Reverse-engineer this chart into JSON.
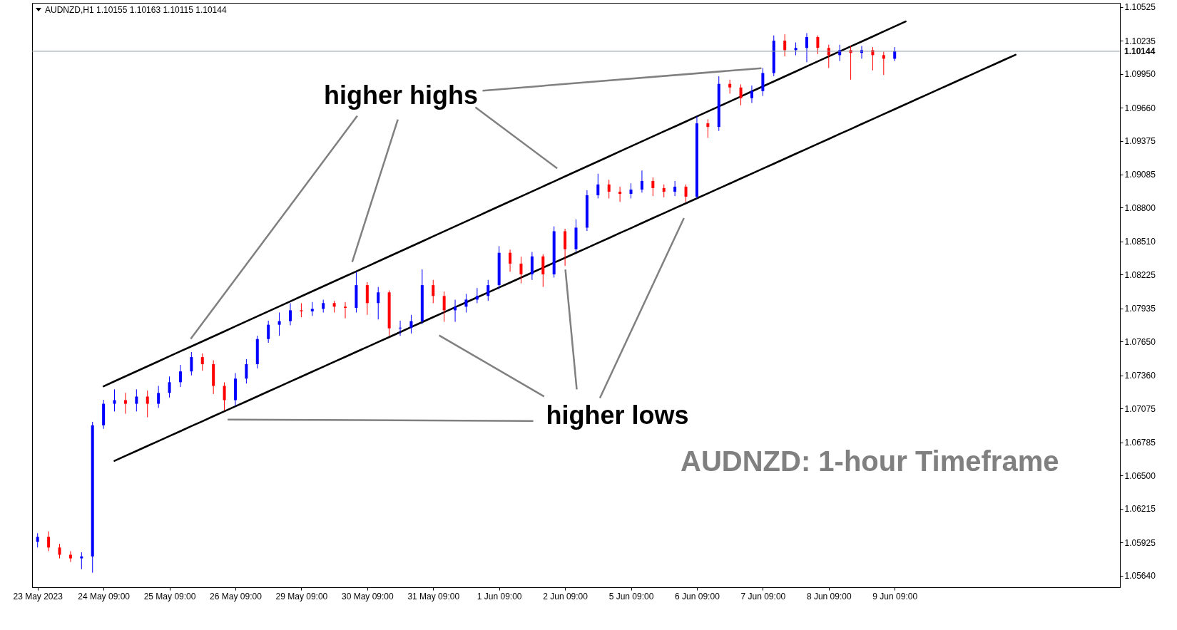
{
  "chart_data": {
    "type": "candlestick",
    "title": "AUDNZD,H1  1.10155 1.10163 1.10115 1.10144",
    "annotations": [
      {
        "text": "higher highs",
        "x": "7 Jun 09:00",
        "y": 1.1
      },
      {
        "text": "higher lows",
        "x": "2 Jun 09:00",
        "y": 1.083
      },
      "AUDNZD: 1-hour Timeframe"
    ],
    "categories": [
      "23 May 2023",
      null,
      null,
      null,
      null,
      null,
      "24 May 09:00",
      null,
      null,
      null,
      null,
      null,
      "25 May 09:00",
      null,
      null,
      null,
      null,
      null,
      "26 May 09:00",
      null,
      null,
      null,
      null,
      null,
      "29 May 09:00",
      null,
      null,
      null,
      null,
      null,
      "30 May 09:00",
      null,
      null,
      null,
      null,
      null,
      "31 May 09:00",
      null,
      null,
      null,
      null,
      null,
      "1 Jun 09:00",
      null,
      null,
      null,
      null,
      null,
      "2 Jun 09:00",
      null,
      null,
      null,
      null,
      null,
      "5 Jun 09:00",
      null,
      null,
      null,
      null,
      null,
      "6 Jun 09:00",
      null,
      null,
      null,
      null,
      null,
      "7 Jun 09:00",
      null,
      null,
      null,
      null,
      null,
      "8 Jun 09:00",
      null,
      null,
      null,
      null,
      null,
      "9 Jun 09:00",
      null,
      null,
      null,
      null,
      null,
      null,
      null,
      null,
      null,
      null,
      null,
      null,
      null,
      null,
      null,
      null,
      null,
      null,
      null,
      null
    ],
    "ohlc": [
      [
        1.0593,
        1.06004,
        1.05881,
        1.05973
      ],
      [
        1.05973,
        1.0602,
        1.0585,
        1.05881
      ],
      [
        1.05881,
        1.05912,
        1.05788,
        1.05819
      ],
      [
        1.05819,
        1.0585,
        1.05757,
        1.05788
      ],
      [
        1.05788,
        1.0584,
        1.05695,
        1.05805
      ],
      [
        1.05805,
        1.06961,
        1.05665,
        1.06931
      ],
      [
        1.06931,
        1.0715,
        1.069,
        1.07116
      ],
      [
        1.07116,
        1.0724,
        1.0705,
        1.07147
      ],
      [
        1.07147,
        1.0721,
        1.0703,
        1.07116
      ],
      [
        1.07116,
        1.0724,
        1.0705,
        1.07178
      ],
      [
        1.07178,
        1.0723,
        1.07,
        1.07116
      ],
      [
        1.07116,
        1.0727,
        1.0708,
        1.07209
      ],
      [
        1.07209,
        1.0735,
        1.0717,
        1.07301
      ],
      [
        1.07301,
        1.0745,
        1.0726,
        1.07394
      ],
      [
        1.07394,
        1.0756,
        1.0736,
        1.07517
      ],
      [
        1.07517,
        1.07548,
        1.074,
        1.07456
      ],
      [
        1.07456,
        1.0749,
        1.072,
        1.0727
      ],
      [
        1.0727,
        1.073,
        1.0706,
        1.07147
      ],
      [
        1.07147,
        1.0738,
        1.071,
        1.07332
      ],
      [
        1.07332,
        1.075,
        1.0729,
        1.07456
      ],
      [
        1.07456,
        1.077,
        1.0742,
        1.07672
      ],
      [
        1.07672,
        1.0783,
        1.0764,
        1.07795
      ],
      [
        1.07795,
        1.079,
        1.077,
        1.07826
      ],
      [
        1.07826,
        1.0798,
        1.0779,
        1.07919
      ],
      [
        1.07919,
        1.0798,
        1.0786,
        1.0791
      ],
      [
        1.0791,
        1.0799,
        1.0787,
        1.07931
      ],
      [
        1.07931,
        1.0801,
        1.079,
        1.07981
      ],
      [
        1.07981,
        1.08,
        1.079,
        1.0795
      ],
      [
        1.0795,
        1.0799,
        1.0785,
        1.0794
      ],
      [
        1.0794,
        1.0825,
        1.079,
        1.08135
      ],
      [
        1.08135,
        1.0816,
        1.0788,
        1.07981
      ],
      [
        1.07981,
        1.0812,
        1.0784,
        1.08073
      ],
      [
        1.08073,
        1.0809,
        1.077,
        1.07764
      ],
      [
        1.07764,
        1.0783,
        1.077,
        1.0777
      ],
      [
        1.0777,
        1.0788,
        1.0772,
        1.07826
      ],
      [
        1.07826,
        1.08271,
        1.078,
        1.08135
      ],
      [
        1.08135,
        1.0818,
        1.0798,
        1.08042
      ],
      [
        1.08042,
        1.0808,
        1.0782,
        1.07919
      ],
      [
        1.07919,
        1.0801,
        1.0782,
        1.0795
      ],
      [
        1.0795,
        1.0806,
        1.079,
        1.08011
      ],
      [
        1.08011,
        1.0811,
        1.0798,
        1.08042
      ],
      [
        1.08042,
        1.0818,
        1.08,
        1.08135
      ],
      [
        1.08135,
        1.0847,
        1.081,
        1.08413
      ],
      [
        1.08413,
        1.0844,
        1.0825,
        1.0832
      ],
      [
        1.0832,
        1.0838,
        1.0815,
        1.08228
      ],
      [
        1.08228,
        1.0842,
        1.0818,
        1.08382
      ],
      [
        1.08382,
        1.084,
        1.0812,
        1.08228
      ],
      [
        1.08228,
        1.0864,
        1.082,
        1.08598
      ],
      [
        1.08598,
        1.0862,
        1.083,
        1.08444
      ],
      [
        1.08444,
        1.087,
        1.0842,
        1.08629
      ],
      [
        1.08629,
        1.0895,
        1.086,
        1.08907
      ],
      [
        1.08907,
        1.09092,
        1.0888,
        1.09
      ],
      [
        1.09,
        1.0904,
        1.0888,
        1.08938
      ],
      [
        1.08938,
        1.0898,
        1.0885,
        1.08919
      ],
      [
        1.08919,
        1.0901,
        1.0888,
        1.08956
      ],
      [
        1.08956,
        1.0912,
        1.0893,
        1.0903
      ],
      [
        1.0903,
        1.0906,
        1.089,
        1.08969
      ],
      [
        1.08969,
        1.09,
        1.0889,
        1.08938
      ],
      [
        1.08938,
        1.0903,
        1.089,
        1.08981
      ],
      [
        1.08981,
        1.09,
        1.0885,
        1.08895
      ],
      [
        1.08895,
        1.09586,
        1.0888,
        1.09525
      ],
      [
        1.09525,
        1.0956,
        1.094,
        1.09494
      ],
      [
        1.09494,
        1.0993,
        1.0946,
        1.09864
      ],
      [
        1.09864,
        1.099,
        1.0978,
        1.09833
      ],
      [
        1.09833,
        1.0986,
        1.0968,
        1.09741
      ],
      [
        1.09741,
        1.0985,
        1.097,
        1.09802
      ],
      [
        1.09802,
        1.1,
        1.0976,
        1.09957
      ],
      [
        1.09957,
        1.1028,
        1.0993,
        1.10235
      ],
      [
        1.10235,
        1.1029,
        1.101,
        1.10154
      ],
      [
        1.10154,
        1.1022,
        1.1011,
        1.10173
      ],
      [
        1.10173,
        1.103,
        1.1005,
        1.10266
      ],
      [
        1.10266,
        1.1028,
        1.1012,
        1.10173
      ],
      [
        1.10173,
        1.102,
        1.1,
        1.10111
      ],
      [
        1.10111,
        1.102,
        1.1006,
        1.10154
      ],
      [
        1.10154,
        1.1019,
        1.099,
        1.1013
      ],
      [
        1.1013,
        1.1019,
        1.1008,
        1.10154
      ],
      [
        1.10154,
        1.1018,
        1.0998,
        1.10111
      ],
      [
        1.10111,
        1.1014,
        1.0994,
        1.1008
      ],
      [
        1.1008,
        1.1018,
        1.1006,
        1.10144
      ],
      null,
      null,
      null,
      null,
      null,
      null,
      null,
      null,
      null,
      null,
      null,
      null,
      null,
      null,
      null,
      null,
      null,
      null,
      null,
      null
    ],
    "colors": [
      "#0000ff",
      "#ff0000",
      "#ff0000",
      "#ff0000",
      "#0000ff",
      "#0000ff",
      "#0000ff",
      "#0000ff",
      "#ff0000",
      "#0000ff",
      "#ff0000",
      "#0000ff",
      "#0000ff",
      "#0000ff",
      "#0000ff",
      "#ff0000",
      "#ff0000",
      "#ff0000",
      "#0000ff",
      "#0000ff",
      "#0000ff",
      "#0000ff",
      "#0000ff",
      "#0000ff",
      "#ff0000",
      "#0000ff",
      "#0000ff",
      "#ff0000",
      "#ff0000",
      "#0000ff",
      "#ff0000",
      "#0000ff",
      "#ff0000",
      "#0000ff",
      "#0000ff",
      "#0000ff",
      "#ff0000",
      "#ff0000",
      "#0000ff",
      "#0000ff",
      "#0000ff",
      "#0000ff",
      "#0000ff",
      "#ff0000",
      "#ff0000",
      "#0000ff",
      "#ff0000",
      "#0000ff",
      "#ff0000",
      "#0000ff",
      "#0000ff",
      "#0000ff",
      "#ff0000",
      "#ff0000",
      "#0000ff",
      "#0000ff",
      "#ff0000",
      "#ff0000",
      "#0000ff",
      "#ff0000",
      "#0000ff",
      "#ff0000",
      "#0000ff",
      "#ff0000",
      "#ff0000",
      "#0000ff",
      "#0000ff",
      "#0000ff",
      "#ff0000",
      "#0000ff",
      "#0000ff",
      "#ff0000",
      "#ff0000",
      "#0000ff",
      "#ff0000",
      "#0000ff",
      "#ff0000",
      "#ff0000",
      "#0000ff",
      null,
      null,
      null,
      null,
      null,
      null,
      null,
      null,
      null,
      null,
      null,
      null,
      null,
      null,
      null,
      null,
      null,
      null,
      null,
      null
    ],
    "series": [
      {
        "type": "line",
        "color": "#000000",
        "values": [
          null,
          null,
          null,
          null,
          null,
          null,
          1.07266,
          1.07309,
          1.07352,
          1.07395,
          1.07438,
          1.07481,
          1.07524,
          1.07567,
          1.07609,
          1.07652,
          1.07695,
          1.07738,
          1.07781,
          1.07824,
          1.07867,
          1.0791,
          1.07953,
          1.07996,
          1.08039,
          1.08082,
          1.08125,
          1.08168,
          1.08211,
          1.08253,
          1.08296,
          1.08339,
          1.08382,
          1.08425,
          1.08468,
          1.08511,
          1.08554,
          1.08597,
          1.0864,
          1.08683,
          1.08726,
          1.08769,
          1.08812,
          1.08855,
          1.08897,
          1.0894,
          1.08983,
          1.09026,
          1.09069,
          1.09112,
          1.09155,
          1.09198,
          1.09241,
          1.09284,
          1.09327,
          1.0937,
          1.09413,
          1.09456,
          1.09498,
          1.09541,
          1.09584,
          1.09627,
          1.0967,
          1.09713,
          1.09756,
          1.09799,
          1.09842,
          1.09885,
          1.09928,
          1.09971,
          1.10014,
          1.10057,
          1.101,
          1.10143,
          1.10186,
          1.10228,
          1.10271,
          1.10314,
          1.10357,
          1.104,
          null,
          null,
          null,
          null,
          null,
          null,
          null,
          null,
          null,
          null,
          null,
          null,
          null,
          null,
          null,
          null,
          null,
          null,
          null
        ]
      },
      {
        "type": "line",
        "color": "#000000",
        "values": [
          null,
          null,
          null,
          null,
          null,
          null,
          null,
          1.06626,
          1.06669,
          1.06711,
          1.06754,
          1.06796,
          1.06839,
          1.06881,
          1.06924,
          1.06966,
          1.07009,
          1.07051,
          1.07094,
          1.07136,
          1.07179,
          1.07222,
          1.07264,
          1.07307,
          1.07349,
          1.07392,
          1.07434,
          1.07477,
          1.07519,
          1.07562,
          1.07604,
          1.07647,
          1.07689,
          1.07732,
          1.07775,
          1.07817,
          1.0786,
          1.07902,
          1.07945,
          1.07987,
          1.0803,
          1.08072,
          1.08115,
          1.08157,
          1.082,
          1.08243,
          1.08285,
          1.08328,
          1.0837,
          1.08413,
          1.08455,
          1.08498,
          1.0854,
          1.08583,
          1.08625,
          1.08668,
          1.08711,
          1.08753,
          1.08796,
          1.08838,
          1.08881,
          1.08923,
          1.08966,
          1.09008,
          1.09051,
          1.09093,
          1.09136,
          1.09178,
          1.09221,
          1.09264,
          1.09306,
          1.09349,
          1.09391,
          1.09434,
          1.09476,
          1.09519,
          1.09561,
          1.09604,
          1.09646,
          1.09689,
          1.09732,
          1.09774,
          1.09817,
          1.09859,
          1.09902,
          1.09944,
          1.09987,
          1.10029,
          1.10072,
          1.10114,
          null,
          null,
          null,
          null,
          null,
          null,
          null,
          null,
          null
        ]
      }
    ],
    "ref_lines": [
      {
        "axis": "y",
        "value": 1.10144,
        "label": "1.10144",
        "color": "#8c9aa0"
      }
    ],
    "ylim": [
      1.0554,
      1.1056
    ],
    "yticks": [
      {
        "value": 1.10525,
        "label": "1.10525"
      },
      {
        "value": 1.10235,
        "label": "1.10235"
      },
      {
        "value": 1.0995,
        "label": "1.09950"
      },
      {
        "value": 1.0966,
        "label": "1.09660"
      },
      {
        "value": 1.09375,
        "label": "1.09375"
      },
      {
        "value": 1.09085,
        "label": "1.09085"
      },
      {
        "value": 1.088,
        "label": "1.08800"
      },
      {
        "value": 1.0851,
        "label": "1.08510"
      },
      {
        "value": 1.08225,
        "label": "1.08225"
      },
      {
        "value": 1.07935,
        "label": "1.07935"
      },
      {
        "value": 1.0765,
        "label": "1.07650"
      },
      {
        "value": 1.0736,
        "label": "1.07360"
      },
      {
        "value": 1.07075,
        "label": "1.07075"
      },
      {
        "value": 1.06785,
        "label": "1.06785"
      },
      {
        "value": 1.065,
        "label": "1.06500"
      },
      {
        "value": 1.06215,
        "label": "1.06215"
      },
      {
        "value": 1.05925,
        "label": "1.05925"
      },
      {
        "value": 1.0564,
        "label": "1.05640"
      }
    ],
    "grid": false,
    "line_style": "solid"
  }
}
